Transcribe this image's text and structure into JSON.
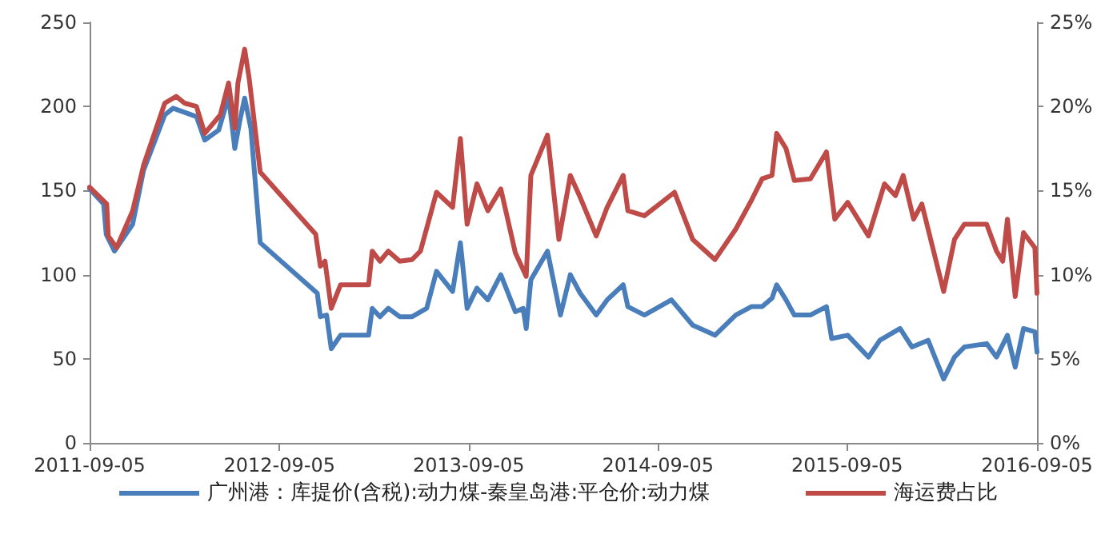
{
  "chart_data": {
    "type": "line",
    "xlim": [
      "2011-09-05",
      "2016-09-05"
    ],
    "xticks": [
      "2011-09-05",
      "2012-09-05",
      "2013-09-05",
      "2014-09-05",
      "2015-09-05",
      "2016-09-05"
    ],
    "ylim": [
      0,
      250
    ],
    "yticks": [
      0,
      50,
      100,
      150,
      200,
      250
    ],
    "y2lim": [
      0,
      25
    ],
    "y2ticks": [
      {
        "value": 0,
        "label": "0%"
      },
      {
        "value": 5,
        "label": "5%"
      },
      {
        "value": 10,
        "label": "10%"
      },
      {
        "value": 15,
        "label": "15%"
      },
      {
        "value": 20,
        "label": "20%"
      },
      {
        "value": 25,
        "label": "25%"
      }
    ],
    "grid": false,
    "legend": "bottom",
    "marker": "none",
    "line_style": "solid",
    "series": [
      {
        "name": "广州港：库提价(含税):动力煤-秦皇岛港:平仓价:动力煤",
        "color": "#4a7ebb",
        "x": [
          "2011-09-05",
          "2011-10-02",
          "2011-10-07",
          "2011-10-23",
          "2011-11-27",
          "2011-12-18",
          "2012-01-28",
          "2012-02-13",
          "2012-03-29",
          "2012-04-14",
          "2012-05-11",
          "2012-05-30",
          "2012-06-11",
          "2012-06-21",
          "2012-06-30",
          "2012-07-12",
          "2012-07-30",
          "2012-11-17",
          "2012-11-23",
          "2012-12-05",
          "2012-12-14",
          "2013-01-01",
          "2013-02-24",
          "2013-03-03",
          "2013-03-18",
          "2013-04-03",
          "2013-04-25",
          "2013-05-19",
          "2013-06-16",
          "2013-07-05",
          "2013-08-05",
          "2013-08-20",
          "2013-09-02",
          "2013-09-21",
          "2013-10-12",
          "2013-11-06",
          "2013-12-04",
          "2013-12-19",
          "2013-12-25",
          "2014-01-03",
          "2014-02-04",
          "2014-03-01",
          "2014-03-20",
          "2014-04-08",
          "2014-05-09",
          "2014-05-30",
          "2014-06-30",
          "2014-07-09",
          "2014-08-10",
          "2014-10-01",
          "2014-11-11",
          "2014-12-24",
          "2015-02-02",
          "2015-03-04",
          "2015-03-25",
          "2015-04-13",
          "2015-04-22",
          "2015-05-10",
          "2015-05-26",
          "2015-06-26",
          "2015-07-27",
          "2015-08-06",
          "2015-09-06",
          "2015-10-16",
          "2015-11-07",
          "2015-12-16",
          "2016-01-08",
          "2016-02-08",
          "2016-03-09",
          "2016-03-30",
          "2016-04-18",
          "2016-05-31",
          "2016-06-19",
          "2016-07-10",
          "2016-07-25",
          "2016-08-10",
          "2016-09-01",
          "2016-09-05"
        ],
        "values": [
          151,
          142,
          124,
          114,
          130,
          162,
          195,
          199,
          194,
          180,
          186,
          206,
          175,
          192,
          205,
          187,
          119,
          89,
          75,
          76,
          56,
          64,
          64,
          80,
          75,
          80,
          75,
          75,
          80,
          102,
          90,
          119,
          80,
          92,
          85,
          100,
          78,
          80,
          68,
          97,
          114,
          76,
          100,
          89,
          76,
          85,
          94,
          81,
          76,
          85,
          70,
          64,
          76,
          81,
          81,
          86,
          94,
          85,
          76,
          76,
          81,
          62,
          64,
          51,
          61,
          68,
          57,
          61,
          38,
          51,
          57,
          59,
          51,
          64,
          45,
          68,
          66,
          54
        ]
      },
      {
        "name": "海运费占比",
        "color": "#be4b48",
        "axis": "y2",
        "x": [
          "2011-09-05",
          "2011-10-08",
          "2011-10-11",
          "2011-10-27",
          "2011-11-27",
          "2011-12-18",
          "2012-01-28",
          "2012-02-19",
          "2012-03-06",
          "2012-03-29",
          "2012-04-14",
          "2012-05-14",
          "2012-05-30",
          "2012-06-11",
          "2012-06-17",
          "2012-06-30",
          "2012-07-09",
          "2012-07-30",
          "2012-11-14",
          "2012-11-23",
          "2012-12-02",
          "2012-12-14",
          "2013-01-01",
          "2013-02-24",
          "2013-03-03",
          "2013-03-18",
          "2013-04-03",
          "2013-04-25",
          "2013-05-19",
          "2013-06-04",
          "2013-07-05",
          "2013-08-05",
          "2013-08-20",
          "2013-09-02",
          "2013-09-21",
          "2013-10-12",
          "2013-11-06",
          "2013-12-04",
          "2013-12-25",
          "2014-01-03",
          "2014-02-04",
          "2014-02-26",
          "2014-03-20",
          "2014-04-08",
          "2014-05-09",
          "2014-05-30",
          "2014-06-30",
          "2014-07-09",
          "2014-08-10",
          "2014-10-07",
          "2014-11-11",
          "2014-12-24",
          "2015-02-02",
          "2015-03-04",
          "2015-03-25",
          "2015-04-13",
          "2015-04-22",
          "2015-05-10",
          "2015-05-26",
          "2015-06-26",
          "2015-07-27",
          "2015-08-12",
          "2015-09-06",
          "2015-10-16",
          "2015-11-16",
          "2015-12-07",
          "2015-12-22",
          "2016-01-11",
          "2016-01-27",
          "2016-03-09",
          "2016-03-30",
          "2016-04-18",
          "2016-05-31",
          "2016-06-19",
          "2016-07-01",
          "2016-07-10",
          "2016-07-25",
          "2016-08-10",
          "2016-09-01",
          "2016-09-05"
        ],
        "values": [
          15.2,
          14.2,
          12.3,
          11.6,
          13.8,
          16.5,
          20.2,
          20.6,
          20.2,
          20.0,
          18.4,
          19.5,
          21.4,
          18.7,
          21.4,
          23.4,
          21.6,
          16.1,
          12.4,
          10.5,
          10.8,
          8.0,
          9.4,
          9.4,
          11.4,
          10.8,
          11.4,
          10.8,
          10.9,
          11.4,
          14.9,
          14.0,
          18.1,
          13.0,
          15.4,
          13.8,
          15.1,
          11.3,
          9.9,
          15.9,
          18.3,
          12.1,
          15.9,
          14.6,
          12.3,
          14.0,
          15.9,
          13.8,
          13.5,
          14.9,
          12.1,
          10.9,
          12.7,
          14.4,
          15.7,
          15.9,
          18.4,
          17.5,
          15.6,
          15.7,
          17.3,
          13.3,
          14.3,
          12.3,
          15.4,
          14.7,
          15.9,
          13.3,
          14.2,
          9.0,
          12.1,
          13.0,
          13.0,
          11.4,
          10.8,
          13.3,
          8.7,
          12.5,
          11.6,
          8.9
        ]
      }
    ]
  }
}
